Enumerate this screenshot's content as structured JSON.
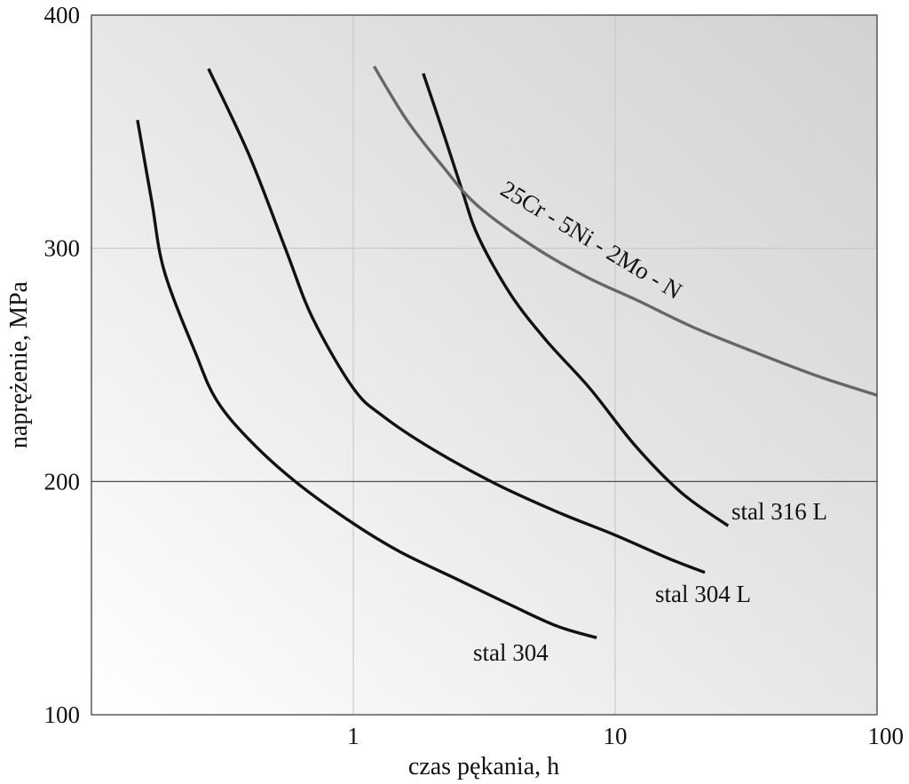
{
  "chart_data": {
    "type": "line",
    "xlabel": "czas pękania, h",
    "ylabel": "naprężenie, MPa",
    "xscale": "log",
    "xlim": [
      0.1,
      100
    ],
    "ylim": [
      100,
      400
    ],
    "x_ticks": [
      {
        "value": 1,
        "label": "1"
      },
      {
        "value": 10,
        "label": "10"
      },
      {
        "value": 100,
        "label": "100"
      }
    ],
    "y_ticks": [
      {
        "value": 100,
        "label": "100"
      },
      {
        "value": 200,
        "label": "200"
      },
      {
        "value": 300,
        "label": "300"
      },
      {
        "value": 400,
        "label": "400"
      }
    ],
    "grid": true,
    "background": "light grey gradient",
    "series": [
      {
        "name": "stal 304",
        "color": "#111111",
        "points": [
          [
            0.15,
            355
          ],
          [
            0.17,
            320
          ],
          [
            0.19,
            290
          ],
          [
            0.25,
            255
          ],
          [
            0.3,
            235
          ],
          [
            0.4,
            218
          ],
          [
            0.6,
            200
          ],
          [
            1.0,
            182
          ],
          [
            1.5,
            170
          ],
          [
            2.5,
            158
          ],
          [
            4.0,
            147
          ],
          [
            6.0,
            138
          ],
          [
            8.5,
            133
          ]
        ]
      },
      {
        "name": "stal 304 L",
        "color": "#111111",
        "points": [
          [
            0.28,
            377
          ],
          [
            0.4,
            340
          ],
          [
            0.55,
            300
          ],
          [
            0.7,
            270
          ],
          [
            1.0,
            240
          ],
          [
            1.3,
            228
          ],
          [
            2.0,
            214
          ],
          [
            3.5,
            199
          ],
          [
            6.0,
            187
          ],
          [
            10.0,
            177
          ],
          [
            16.0,
            167
          ],
          [
            22.0,
            161
          ]
        ]
      },
      {
        "name": "stal 316 L",
        "color": "#111111",
        "points": [
          [
            1.85,
            375
          ],
          [
            2.2,
            350
          ],
          [
            2.6,
            325
          ],
          [
            3.0,
            305
          ],
          [
            4.0,
            280
          ],
          [
            5.5,
            260
          ],
          [
            8.0,
            240
          ],
          [
            12.0,
            215
          ],
          [
            18.0,
            195
          ],
          [
            27.0,
            181
          ]
        ]
      },
      {
        "name": "25Cr - 5Ni - 2Mo - N",
        "color": "#666666",
        "points": [
          [
            1.2,
            378
          ],
          [
            1.6,
            355
          ],
          [
            2.2,
            335
          ],
          [
            3.0,
            318
          ],
          [
            5.0,
            300
          ],
          [
            8.0,
            287
          ],
          [
            12.0,
            278
          ],
          [
            20.0,
            266
          ],
          [
            35.0,
            255
          ],
          [
            60.0,
            245
          ],
          [
            100.0,
            237
          ]
        ]
      }
    ]
  }
}
